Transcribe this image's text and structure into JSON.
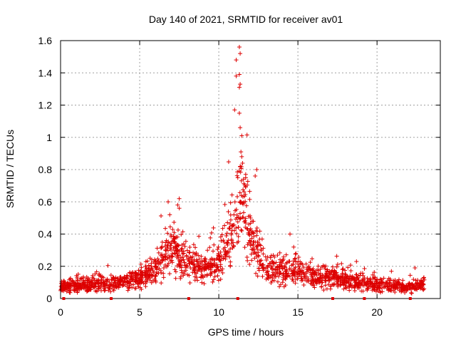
{
  "chart_data": {
    "type": "scatter",
    "title": "Day 140 of 2021, SRMTID for receiver av01",
    "xlabel": "GPS time / hours",
    "ylabel": "SRMTID / TECUs",
    "xlim": [
      0,
      24
    ],
    "ylim": [
      0,
      1.6
    ],
    "x_ticks": [
      0,
      5,
      10,
      15,
      20
    ],
    "x_tick_labels": [
      "0",
      "5",
      "10",
      "15",
      "20"
    ],
    "y_ticks": [
      0,
      0.2,
      0.4,
      0.6,
      0.8,
      1.0,
      1.2,
      1.4,
      1.6
    ],
    "y_tick_labels": [
      "0",
      "0.2",
      "0.4",
      "0.6",
      "0.8",
      "1",
      "1.2",
      "1.4",
      "1.6"
    ],
    "grid": true,
    "marker": "+",
    "series_color": "#dd0000",
    "gap_markers_x": [
      0.2,
      3.2,
      8.1,
      11.2,
      17.2,
      19.2,
      22.1
    ],
    "profile": [
      {
        "x": 0.0,
        "y": 0.07
      },
      {
        "x": 2.0,
        "y": 0.08
      },
      {
        "x": 3.5,
        "y": 0.09
      },
      {
        "x": 5.0,
        "y": 0.12
      },
      {
        "x": 6.0,
        "y": 0.18
      },
      {
        "x": 7.0,
        "y": 0.3
      },
      {
        "x": 8.0,
        "y": 0.22
      },
      {
        "x": 9.0,
        "y": 0.18
      },
      {
        "x": 10.0,
        "y": 0.22
      },
      {
        "x": 11.0,
        "y": 0.45
      },
      {
        "x": 11.5,
        "y": 0.6
      },
      {
        "x": 12.0,
        "y": 0.4
      },
      {
        "x": 13.0,
        "y": 0.18
      },
      {
        "x": 14.5,
        "y": 0.17
      },
      {
        "x": 16.0,
        "y": 0.13
      },
      {
        "x": 18.0,
        "y": 0.11
      },
      {
        "x": 20.0,
        "y": 0.08
      },
      {
        "x": 22.0,
        "y": 0.07
      },
      {
        "x": 23.0,
        "y": 0.08
      }
    ],
    "highlights": [
      {
        "x": 11.3,
        "y": 1.56
      },
      {
        "x": 11.35,
        "y": 1.52
      },
      {
        "x": 11.1,
        "y": 1.48
      },
      {
        "x": 11.3,
        "y": 1.39
      },
      {
        "x": 11.1,
        "y": 1.38
      },
      {
        "x": 11.35,
        "y": 1.33
      },
      {
        "x": 11.3,
        "y": 1.31
      },
      {
        "x": 11.0,
        "y": 1.17
      },
      {
        "x": 11.3,
        "y": 1.15
      },
      {
        "x": 11.45,
        "y": 1.01
      },
      {
        "x": 11.35,
        "y": 1.06
      },
      {
        "x": 11.4,
        "y": 0.91
      },
      {
        "x": 11.45,
        "y": 0.88
      },
      {
        "x": 11.5,
        "y": 0.84
      },
      {
        "x": 11.35,
        "y": 0.82
      },
      {
        "x": 12.4,
        "y": 0.8
      },
      {
        "x": 11.7,
        "y": 0.77
      },
      {
        "x": 11.2,
        "y": 0.75
      },
      {
        "x": 12.3,
        "y": 0.76
      },
      {
        "x": 6.8,
        "y": 0.6
      },
      {
        "x": 7.5,
        "y": 0.62
      },
      {
        "x": 7.4,
        "y": 0.58
      },
      {
        "x": 7.5,
        "y": 0.56
      },
      {
        "x": 6.9,
        "y": 0.52
      },
      {
        "x": 14.5,
        "y": 0.4
      },
      {
        "x": 18.7,
        "y": 0.23
      },
      {
        "x": 22.4,
        "y": 0.19
      }
    ]
  }
}
